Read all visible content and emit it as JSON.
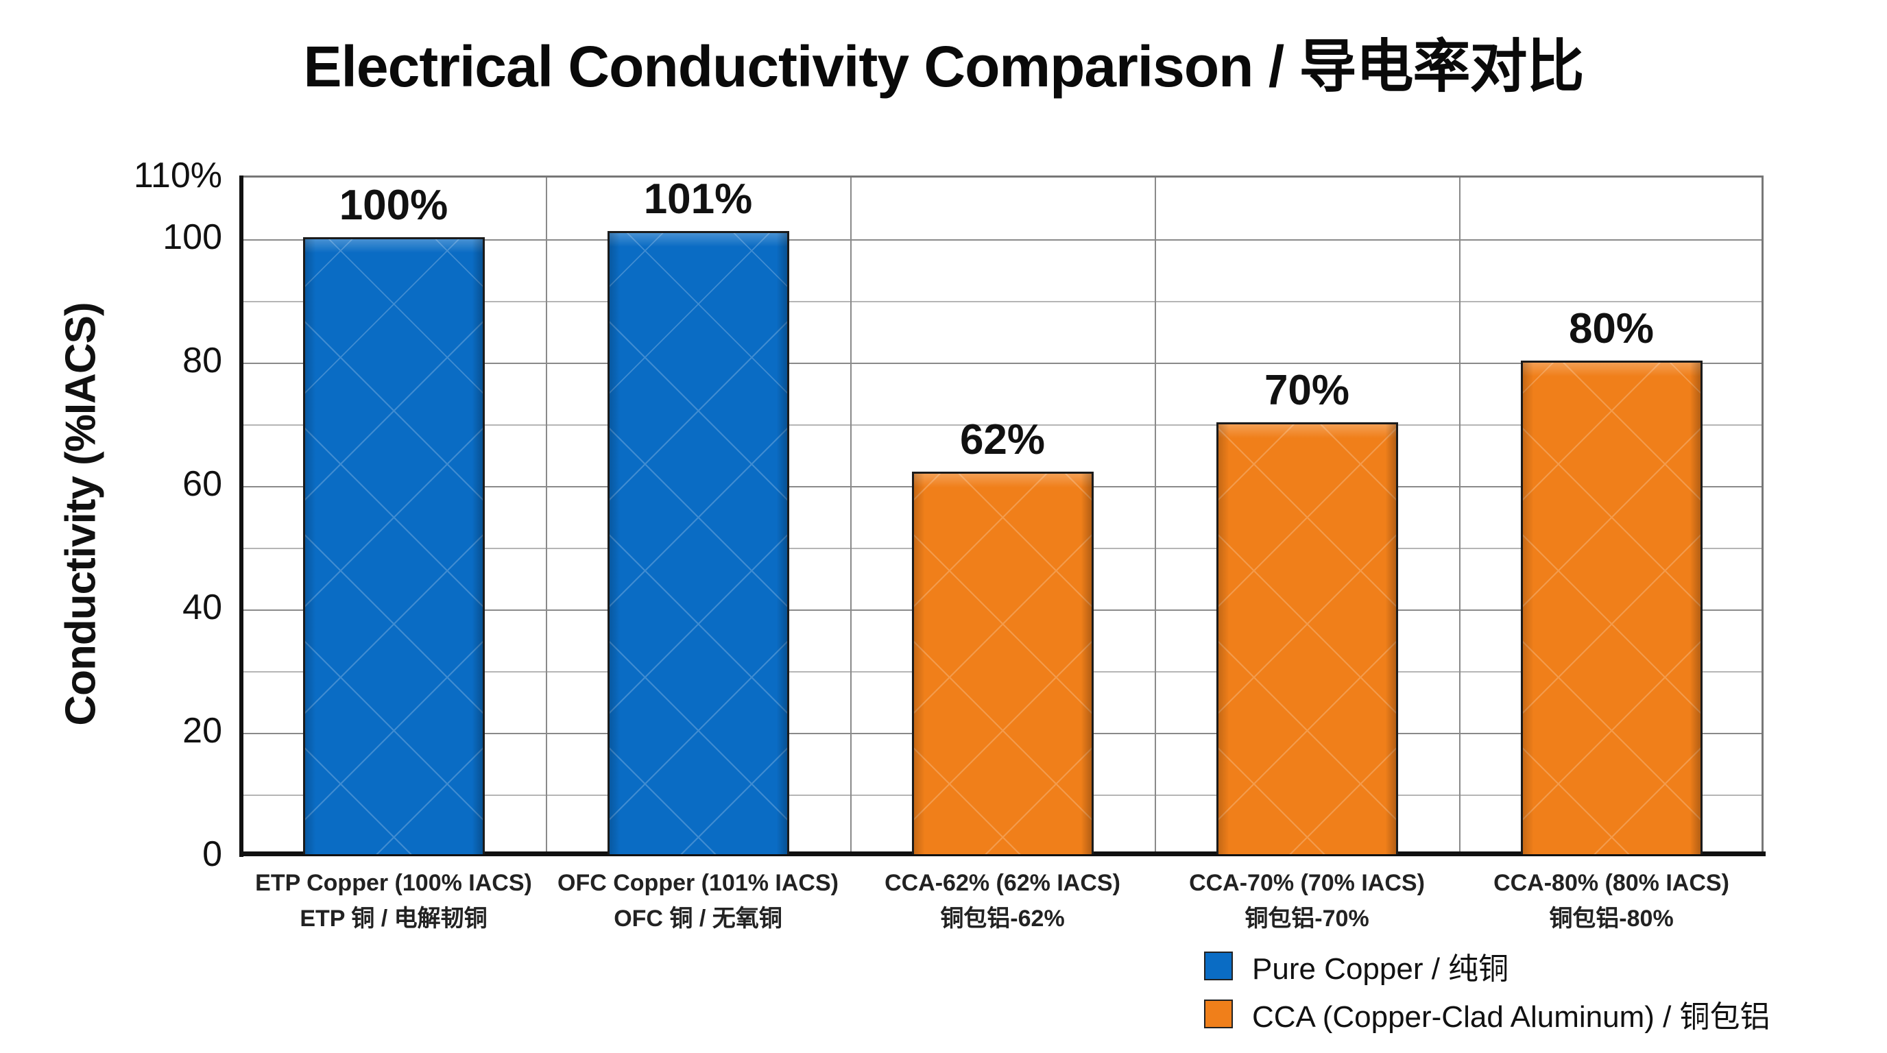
{
  "chart_data": {
    "type": "bar",
    "title": "Electrical Conductivity Comparison / 导电率对比",
    "xlabel": "",
    "ylabel": "Conductivity (%IACS)",
    "ylim": [
      0,
      110
    ],
    "yticks": [
      "0",
      "20",
      "40",
      "60",
      "80",
      "100",
      "110%"
    ],
    "ytick_values": [
      0,
      20,
      40,
      60,
      80,
      100,
      110
    ],
    "grid": {
      "horizontal_step": 10,
      "vertical_between_categories": true
    },
    "categories": [
      {
        "line1": "ETP Copper (100% IACS)",
        "line2": "ETP 铜 / 电解韧铜"
      },
      {
        "line1": "OFC Copper (101% IACS)",
        "line2": "OFC 铜 / 无氧铜"
      },
      {
        "line1": "CCA-62% (62% IACS)",
        "line2": "铜包铝-62%"
      },
      {
        "line1": "CCA-70% (70% IACS)",
        "line2": "铜包铝-70%"
      },
      {
        "line1": "CCA-80% (80% IACS)",
        "line2": "铜包铝-80%"
      }
    ],
    "values": [
      100,
      101,
      62,
      70,
      80
    ],
    "value_labels": [
      "100%",
      "101%",
      "62%",
      "70%",
      "80%"
    ],
    "series_index": [
      0,
      0,
      1,
      1,
      1
    ],
    "series": [
      {
        "name": "Pure Copper / 纯铜",
        "color": "#0a6cc4"
      },
      {
        "name": "CCA (Copper-Clad Aluminum) / 铜包铝",
        "color": "#f07f1a"
      }
    ],
    "legend_position": "bottom-right"
  }
}
